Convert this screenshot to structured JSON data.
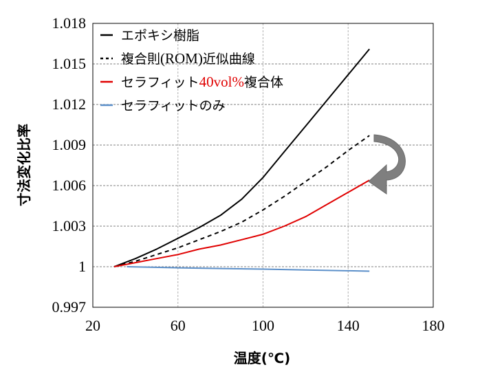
{
  "chart_data": {
    "type": "line",
    "xlabel": "温度(℃)",
    "ylabel": "寸法変化比率",
    "xlim": [
      20,
      180
    ],
    "ylim": [
      0.997,
      1.018
    ],
    "x_ticks": [
      "20",
      "60",
      "100",
      "140",
      "180"
    ],
    "y_ticks": [
      "0.997",
      "1",
      "1.003",
      "1.006",
      "1.009",
      "1.012",
      "1.015",
      "1.018"
    ],
    "grid": "dashed gray lines at x = 60, 100, 140 and at every y tick",
    "legend_placement": "top-left",
    "series": [
      {
        "name": "エポキシ樹脂",
        "color": "#000000",
        "dash": "solid",
        "x": [
          30,
          40,
          50,
          60,
          70,
          80,
          90,
          100,
          110,
          120,
          130,
          140,
          150
        ],
        "y": [
          1.0,
          1.0006,
          1.0013,
          1.0021,
          1.0029,
          1.0038,
          1.005,
          1.0066,
          1.0085,
          1.0104,
          1.0123,
          1.0142,
          1.0161
        ]
      },
      {
        "name_parts": [
          "複合則",
          "(ROM)",
          "近似曲線"
        ],
        "color": "#000000",
        "dash": "dashed",
        "x": [
          30,
          40,
          50,
          60,
          70,
          80,
          90,
          100,
          110,
          120,
          130,
          140,
          150
        ],
        "y": [
          1.0,
          1.0004,
          1.0009,
          1.0014,
          1.002,
          1.0026,
          1.0033,
          1.0042,
          1.0052,
          1.0063,
          1.0074,
          1.0086,
          1.0097
        ]
      },
      {
        "name_parts": [
          "セラフィット",
          "40vol%",
          "複合体"
        ],
        "color": "#e00000",
        "dash": "solid",
        "x": [
          30,
          40,
          50,
          60,
          70,
          80,
          90,
          100,
          110,
          120,
          130,
          140,
          150
        ],
        "y": [
          1.0,
          1.0003,
          1.0006,
          1.0009,
          1.0013,
          1.0016,
          1.002,
          1.0024,
          1.003,
          1.0037,
          1.0046,
          1.0055,
          1.0064
        ]
      },
      {
        "name": "セラフィットのみ",
        "color": "#5b8fc9",
        "dash": "solid",
        "x": [
          36,
          60,
          80,
          100,
          120,
          150
        ],
        "y": [
          1.0,
          0.99992,
          0.99987,
          0.99982,
          0.99976,
          0.99967
        ]
      }
    ],
    "annotation": "curved gray arrow pointing from the ROM curve end down to the red curve end"
  }
}
